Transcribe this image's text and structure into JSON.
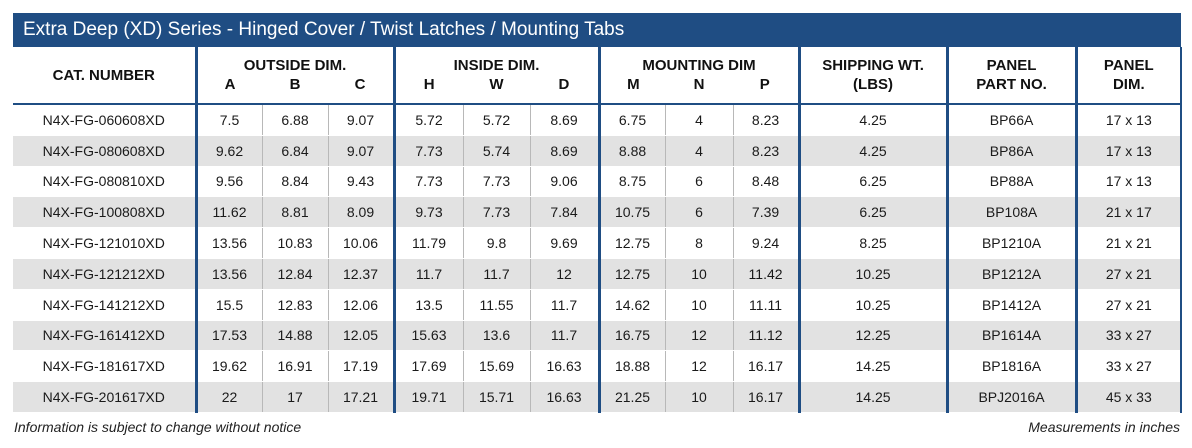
{
  "title": "Extra Deep (XD) Series -  Hinged Cover / Twist Latches / Mounting Tabs",
  "headers": {
    "cat_number": "CAT. NUMBER",
    "outside_dim": "OUTSIDE DIM.",
    "outside_a": "A",
    "outside_b": "B",
    "outside_c": "C",
    "inside_dim": "INSIDE DIM.",
    "inside_h": "H",
    "inside_w": "W",
    "inside_d": "D",
    "mounting_dim": "MOUNTING DIM",
    "mounting_m": "M",
    "mounting_n": "N",
    "mounting_p": "P",
    "shipping_wt_1": "SHIPPING WT.",
    "shipping_wt_2": "(LBS)",
    "panel_part_1": "PANEL",
    "panel_part_2": "PART NO.",
    "panel_dim_1": "PANEL",
    "panel_dim_2": "DIM."
  },
  "rows": [
    [
      "N4X-FG-060608XD",
      "7.5",
      "6.88",
      "9.07",
      "5.72",
      "5.72",
      "8.69",
      "6.75",
      "4",
      "8.23",
      "4.25",
      "BP66A",
      "17 x 13"
    ],
    [
      "N4X-FG-080608XD",
      "9.62",
      "6.84",
      "9.07",
      "7.73",
      "5.74",
      "8.69",
      "8.88",
      "4",
      "8.23",
      "4.25",
      "BP86A",
      "17 x 13"
    ],
    [
      "N4X-FG-080810XD",
      "9.56",
      "8.84",
      "9.43",
      "7.73",
      "7.73",
      "9.06",
      "8.75",
      "6",
      "8.48",
      "6.25",
      "BP88A",
      "17 x 13"
    ],
    [
      "N4X-FG-100808XD",
      "11.62",
      "8.81",
      "8.09",
      "9.73",
      "7.73",
      "7.84",
      "10.75",
      "6",
      "7.39",
      "6.25",
      "BP108A",
      "21 x 17"
    ],
    [
      "N4X-FG-121010XD",
      "13.56",
      "10.83",
      "10.06",
      "11.79",
      "9.8",
      "9.69",
      "12.75",
      "8",
      "9.24",
      "8.25",
      "BP1210A",
      "21 x 21"
    ],
    [
      "N4X-FG-121212XD",
      "13.56",
      "12.84",
      "12.37",
      "11.7",
      "11.7",
      "12",
      "12.75",
      "10",
      "11.42",
      "10.25",
      "BP1212A",
      "27 x 21"
    ],
    [
      "N4X-FG-141212XD",
      "15.5",
      "12.83",
      "12.06",
      "13.5",
      "11.55",
      "11.7",
      "14.62",
      "10",
      "11.11",
      "10.25",
      "BP1412A",
      "27 x 21"
    ],
    [
      "N4X-FG-161412XD",
      "17.53",
      "14.88",
      "12.05",
      "15.63",
      "13.6",
      "11.7",
      "16.75",
      "12",
      "11.12",
      "12.25",
      "BP1614A",
      "33 x 27"
    ],
    [
      "N4X-FG-181617XD",
      "19.62",
      "16.91",
      "17.19",
      "17.69",
      "15.69",
      "16.63",
      "18.88",
      "12",
      "16.17",
      "14.25",
      "BP1816A",
      "33 x 27"
    ],
    [
      "N4X-FG-201617XD",
      "22",
      "17",
      "17.21",
      "19.71",
      "15.71",
      "16.63",
      "21.25",
      "10",
      "16.17",
      "14.25",
      "BPJ2016A",
      "45 x 33"
    ]
  ],
  "footer": {
    "left": "Information is subject to change without notice",
    "right": "Measurements in inches"
  },
  "colors": {
    "header_blue": "#1f4d83",
    "stripe_gray": "#e2e2e2"
  }
}
